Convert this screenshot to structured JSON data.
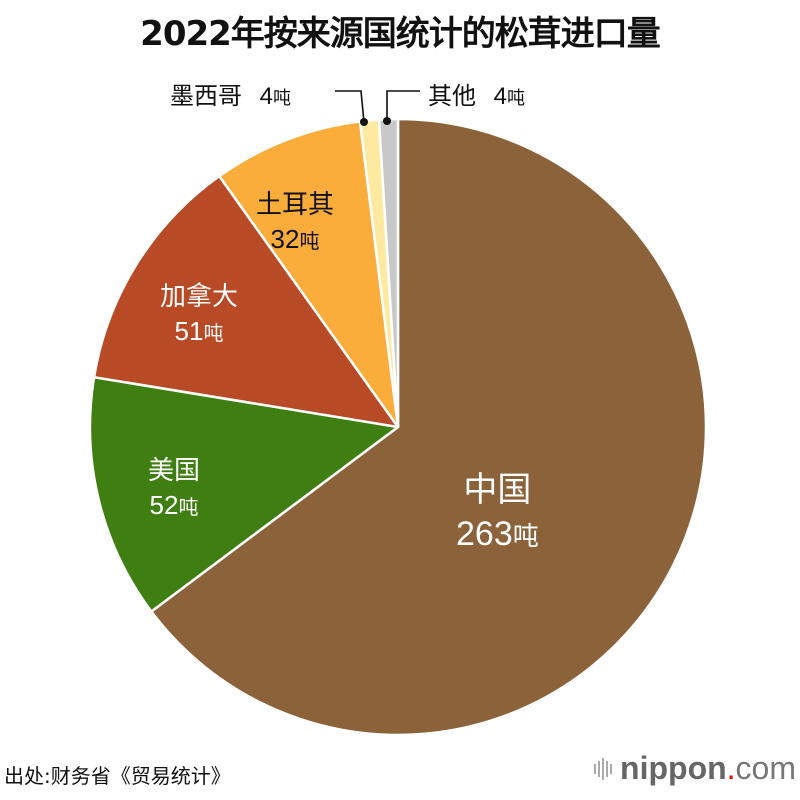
{
  "title": "2022年按来源国统计的松茸进口量",
  "unit": "吨",
  "chart_data": {
    "type": "pie",
    "title": "2022年按来源国统计的松茸进口量",
    "unit": "吨",
    "start_angle": "12 o'clock, clockwise",
    "center": [
      398,
      427
    ],
    "radius": 308,
    "slices": [
      {
        "label": "中国",
        "value": 263,
        "color": "#8b6239",
        "text_color": "#ffffff"
      },
      {
        "label": "美国",
        "value": 52,
        "color": "#3f7f12",
        "text_color": "#ffffff"
      },
      {
        "label": "加拿大",
        "value": 51,
        "color": "#b84a26",
        "text_color": "#ffffff"
      },
      {
        "label": "土耳其",
        "value": 32,
        "color": "#fbad3c",
        "text_color": "#111111"
      },
      {
        "label": "墨西哥",
        "value": 4,
        "color": "#fdeaa0",
        "text_color": "#111111"
      },
      {
        "label": "其他",
        "value": 4,
        "color": "#c8c8c8",
        "text_color": "#111111"
      }
    ],
    "legend": "none (direct labels)"
  },
  "labels": {
    "china": {
      "name": "中国",
      "value": "263"
    },
    "usa": {
      "name": "美国",
      "value": "52"
    },
    "canada": {
      "name": "加拿大",
      "value": "51"
    },
    "turkey": {
      "name": "土耳其",
      "value": "32"
    },
    "mexico": {
      "name": "墨西哥",
      "value": "4"
    },
    "other": {
      "name": "其他",
      "value": "4"
    }
  },
  "footer": {
    "source": "出处:财务省《贸易统计》",
    "logo_brand": "nippon",
    "logo_dot": ".",
    "logo_tld": "com"
  }
}
